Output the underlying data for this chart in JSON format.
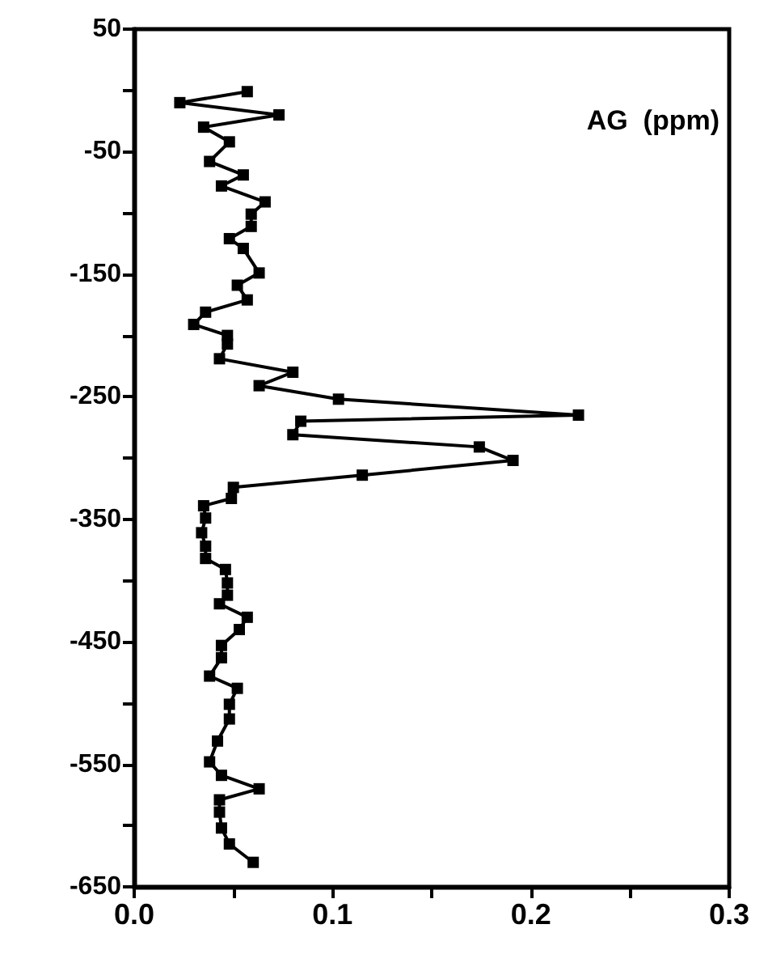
{
  "chart_data": {
    "type": "line",
    "annotations": [
      "AG  (ppm)"
    ],
    "x": [
      0.057,
      0.023,
      0.073,
      0.035,
      0.048,
      0.038,
      0.055,
      0.044,
      0.066,
      0.059,
      0.059,
      0.048,
      0.055,
      0.063,
      0.052,
      0.057,
      0.036,
      0.03,
      0.047,
      0.047,
      0.043,
      0.08,
      0.063,
      0.103,
      0.224,
      0.084,
      0.08,
      0.174,
      0.191,
      0.115,
      0.05,
      0.049,
      0.035,
      0.036,
      0.034,
      0.036,
      0.036,
      0.046,
      0.047,
      0.047,
      0.043,
      0.057,
      0.053,
      0.044,
      0.044,
      0.038,
      0.052,
      0.048,
      0.048,
      0.042,
      0.038,
      0.044,
      0.063,
      0.043,
      0.043,
      0.044,
      0.048,
      0.06
    ],
    "values": [
      -1,
      -10,
      -20,
      -30,
      -42,
      -58,
      -69,
      -78,
      -91,
      -101,
      -111,
      -121,
      -129,
      -149,
      -159,
      -171,
      -181,
      -191,
      -200,
      -207,
      -219,
      -230,
      -241,
      -252,
      -265,
      -270,
      -281,
      -291,
      -302,
      -314,
      -324,
      -333,
      -339,
      -349,
      -361,
      -372,
      -382,
      -391,
      -402,
      -412,
      -419,
      -430,
      -440,
      -453,
      -463,
      -478,
      -488,
      -501,
      -513,
      -531,
      -548,
      -559,
      -570,
      -579,
      -589,
      -602,
      -615,
      -630
    ],
    "color": "#000000",
    "marker": "square",
    "line_style": "solid",
    "grid": false,
    "xlim": [
      0,
      0.3
    ],
    "xticks": [
      {
        "value": 0,
        "label": "0.0"
      },
      {
        "value": 0.05,
        "label": null
      },
      {
        "value": 0.1,
        "label": "0.1"
      },
      {
        "value": 0.15,
        "label": null
      },
      {
        "value": 0.2,
        "label": "0.2"
      },
      {
        "value": 0.25,
        "label": null
      },
      {
        "value": 0.3,
        "label": "0.3"
      }
    ],
    "ylim": [
      -650,
      50
    ],
    "yticks": [
      -650,
      {
        "value": -600,
        "label": null
      },
      -550,
      {
        "value": -500,
        "label": null
      },
      -450,
      {
        "value": -400,
        "label": null
      },
      -350,
      {
        "value": -300,
        "label": null
      },
      -250,
      {
        "value": -200,
        "label": null
      },
      -150,
      {
        "value": -100,
        "label": null
      },
      -50,
      {
        "value": 0,
        "label": null
      },
      50
    ]
  }
}
